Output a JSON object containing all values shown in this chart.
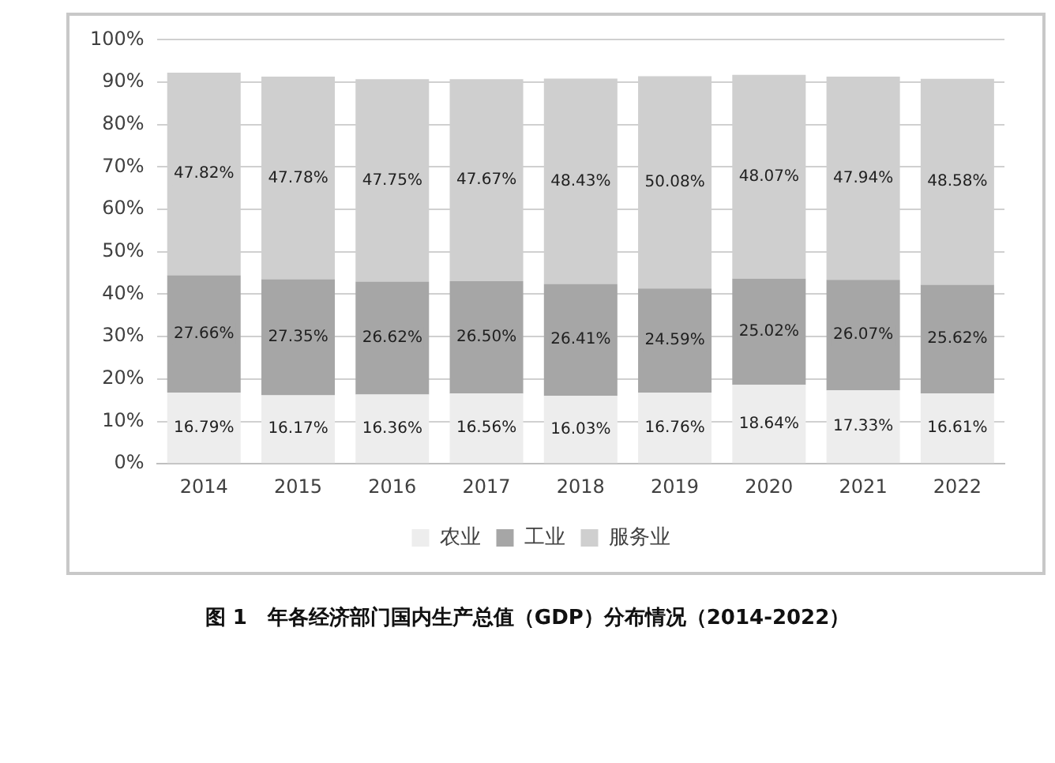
{
  "chart_data": {
    "type": "bar",
    "stacked": true,
    "title": "图 1　年各经济部门国内生产总值（GDP）分布情况（2014-2022）",
    "categories": [
      "2014",
      "2015",
      "2016",
      "2017",
      "2018",
      "2019",
      "2020",
      "2021",
      "2022"
    ],
    "series": [
      {
        "name": "农业",
        "color": "#ededed",
        "values": [
          16.79,
          16.17,
          16.36,
          16.56,
          16.03,
          16.76,
          18.64,
          17.33,
          16.61
        ],
        "value_labels": [
          "16.79%",
          "16.17%",
          "16.36%",
          "16.56%",
          "16.03%",
          "16.76%",
          "18.64%",
          "17.33%",
          "16.61%"
        ]
      },
      {
        "name": "工业",
        "color": "#a6a6a6",
        "values": [
          27.66,
          27.35,
          26.62,
          26.5,
          26.41,
          24.59,
          25.02,
          26.07,
          25.62
        ],
        "value_labels": [
          "27.66%",
          "27.35%",
          "26.62%",
          "26.50%",
          "26.41%",
          "24.59%",
          "25.02%",
          "26.07%",
          "25.62%"
        ]
      },
      {
        "name": "服务业",
        "color": "#cfcfcf",
        "values": [
          47.82,
          47.78,
          47.75,
          47.67,
          48.43,
          50.08,
          48.07,
          47.94,
          48.58
        ],
        "value_labels": [
          "47.82%",
          "47.78%",
          "47.75%",
          "47.67%",
          "48.43%",
          "50.08%",
          "48.07%",
          "47.94%",
          "48.58%"
        ]
      }
    ],
    "ylim": [
      0,
      100
    ],
    "yticks": [
      {
        "value": 0,
        "label": "0%"
      },
      {
        "value": 10,
        "label": "10%"
      },
      {
        "value": 20,
        "label": "20%"
      },
      {
        "value": 30,
        "label": "30%"
      },
      {
        "value": 40,
        "label": "40%"
      },
      {
        "value": 50,
        "label": "50%"
      },
      {
        "value": 60,
        "label": "60%"
      },
      {
        "value": 70,
        "label": "70%"
      },
      {
        "value": 80,
        "label": "80%"
      },
      {
        "value": 90,
        "label": "90%"
      },
      {
        "value": 100,
        "label": "100%"
      }
    ],
    "grid": "y",
    "legend": "bottom"
  }
}
